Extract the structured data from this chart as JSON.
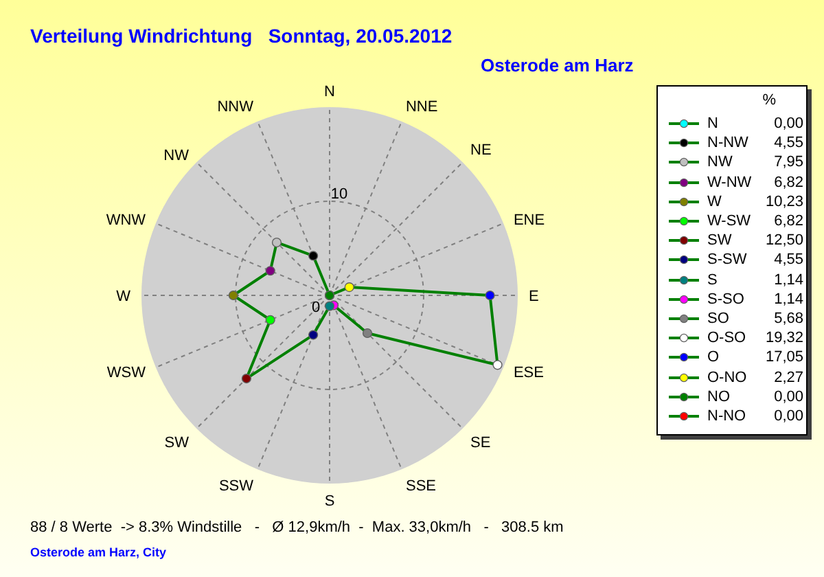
{
  "chart_data": {
    "type": "radar",
    "title": "Verteilung Windrichtung   Sonntag, 20.05.2012",
    "subtitle": "Osterode am Harz",
    "categories": [
      "N",
      "NNE",
      "NE",
      "ENE",
      "E",
      "ESE",
      "SE",
      "SSE",
      "S",
      "SSW",
      "SW",
      "WSW",
      "W",
      "WNW",
      "NW",
      "NNW"
    ],
    "ylim": [
      0,
      20
    ],
    "yticks": [
      0,
      10
    ],
    "grid": true,
    "marker": "circle",
    "series": [
      {
        "color": "#008000",
        "values": [
          0.0,
          0.0,
          0.0,
          2.27,
          17.05,
          19.32,
          5.68,
          1.14,
          1.14,
          4.55,
          12.5,
          6.82,
          10.23,
          6.82,
          7.95,
          4.55
        ],
        "colors": [
          "#00ffff",
          "#ff0000",
          "#008000",
          "#ffff00",
          "#0000ff",
          "#ffffff",
          "#808080",
          "#ff00ff",
          "#008080",
          "#000080",
          "#800000",
          "#00ff00",
          "#808000",
          "#800080",
          "#c0c0c0",
          "#000000"
        ]
      }
    ],
    "annotations": [
      "88 / 8 Werte  -> 8.3% Windstille   -   Ø 12,9km/h  -  Max. 33,0km/h   -   308.5 km",
      "Osterode am Harz, City",
      "%",
      "N",
      "0,00",
      "N-NW",
      "4,55",
      "NW",
      "7,95",
      "W-NW",
      "6,82",
      "W",
      "10,23",
      "W-SW",
      "6,82",
      "SW",
      "12,50",
      "S-SW",
      "4,55",
      "S",
      "1,14",
      "S-SO",
      "1,14",
      "SO",
      "5,68",
      "O-SO",
      "19,32",
      "O",
      "17,05",
      "O-NO",
      "2,27",
      "NO",
      "0,00",
      "N-NO",
      "0,00"
    ]
  }
}
